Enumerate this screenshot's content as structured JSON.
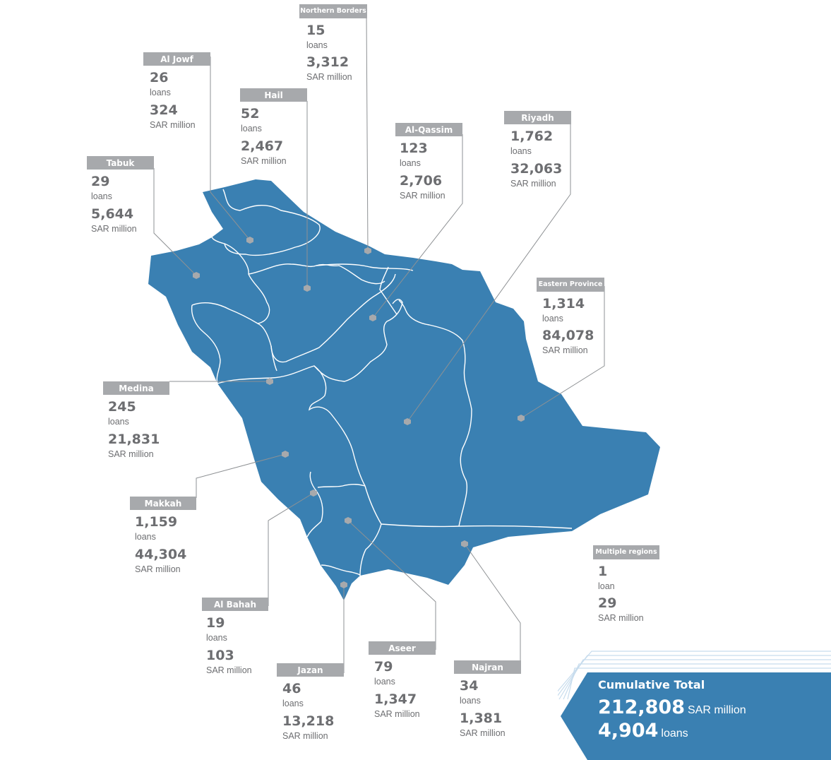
{
  "colors": {
    "map_fill": "#3a80b2",
    "border": "#ffffff",
    "tag_bg": "#a7a9ac",
    "text": "#6d6e71",
    "leader": "#8e9194",
    "marker": "#a7a9ac"
  },
  "regions": {
    "northern_borders": {
      "name": "Northern Borders",
      "loans": "15",
      "loans_unit": "loans",
      "amount": "3,312",
      "amount_unit": "SAR million"
    },
    "al_jowf": {
      "name": "Al Jowf",
      "loans": "26",
      "loans_unit": "loans",
      "amount": "324",
      "amount_unit": "SAR million"
    },
    "hail": {
      "name": "Hail",
      "loans": "52",
      "loans_unit": "loans",
      "amount": "2,467",
      "amount_unit": "SAR million"
    },
    "al_qassim": {
      "name": "Al-Qassim",
      "loans": "123",
      "loans_unit": "loans",
      "amount": "2,706",
      "amount_unit": "SAR million"
    },
    "riyadh": {
      "name": "Riyadh",
      "loans": "1,762",
      "loans_unit": "loans",
      "amount": "32,063",
      "amount_unit": "SAR million"
    },
    "tabuk": {
      "name": "Tabuk",
      "loans": "29",
      "loans_unit": "loans",
      "amount": "5,644",
      "amount_unit": "SAR million"
    },
    "eastern_province": {
      "name": "Eastern Province",
      "loans": "1,314",
      "loans_unit": "loans",
      "amount": "84,078",
      "amount_unit": "SAR million"
    },
    "medina": {
      "name": "Medina",
      "loans": "245",
      "loans_unit": "loans",
      "amount": "21,831",
      "amount_unit": "SAR million"
    },
    "makkah": {
      "name": "Makkah",
      "loans": "1,159",
      "loans_unit": "loans",
      "amount": "44,304",
      "amount_unit": "SAR million"
    },
    "multiple_regions": {
      "name": "Multiple regions",
      "loans": "1",
      "loans_unit": "loan",
      "amount": "29",
      "amount_unit": "SAR million"
    },
    "al_bahah": {
      "name": "Al Bahah",
      "loans": "19",
      "loans_unit": "loans",
      "amount": "103",
      "amount_unit": "SAR million"
    },
    "aseer": {
      "name": "Aseer",
      "loans": "79",
      "loans_unit": "loans",
      "amount": "1,347",
      "amount_unit": "SAR million"
    },
    "najran": {
      "name": "Najran",
      "loans": "34",
      "loans_unit": "loans",
      "amount": "1,381",
      "amount_unit": "SAR million"
    },
    "jazan": {
      "name": "Jazan",
      "loans": "46",
      "loans_unit": "loans",
      "amount": "13,218",
      "amount_unit": "SAR million"
    }
  },
  "total": {
    "title": "Cumulative Total",
    "amount": "212,808",
    "amount_unit": "SAR million",
    "loans": "4,904",
    "loans_unit": "loans"
  }
}
